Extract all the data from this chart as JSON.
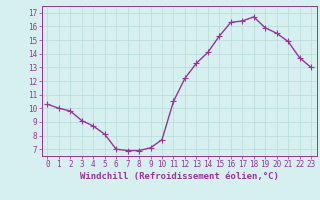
{
  "x": [
    0,
    1,
    2,
    3,
    4,
    5,
    6,
    7,
    8,
    9,
    10,
    11,
    12,
    13,
    14,
    15,
    16,
    17,
    18,
    19,
    20,
    21,
    22,
    23
  ],
  "y": [
    10.3,
    10.0,
    9.8,
    9.1,
    8.7,
    8.1,
    7.0,
    6.9,
    6.9,
    7.1,
    7.7,
    10.5,
    12.2,
    13.3,
    14.1,
    15.3,
    16.3,
    16.4,
    16.7,
    15.9,
    15.5,
    14.9,
    13.7,
    13.0
  ],
  "line_color": "#993399",
  "marker": "+",
  "marker_size": 4,
  "bg_color": "#d6f0f0",
  "grid_color": "#b8dada",
  "ylabel_ticks": [
    7,
    8,
    9,
    10,
    11,
    12,
    13,
    14,
    15,
    16,
    17
  ],
  "xlabel": "Windchill (Refroidissement éolien,°C)",
  "xlim": [
    -0.5,
    23.5
  ],
  "ylim": [
    6.5,
    17.5
  ],
  "xticks": [
    0,
    1,
    2,
    3,
    4,
    5,
    6,
    7,
    8,
    9,
    10,
    11,
    12,
    13,
    14,
    15,
    16,
    17,
    18,
    19,
    20,
    21,
    22,
    23
  ],
  "tick_fontsize": 5.5,
  "xlabel_fontsize": 6.5,
  "line_width": 1.0,
  "marker_linewidth": 0.8
}
